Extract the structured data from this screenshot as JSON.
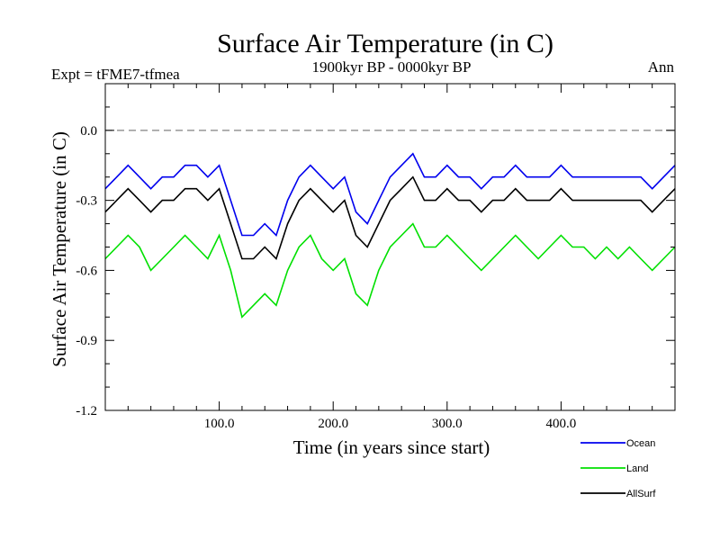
{
  "chart_data": {
    "type": "line",
    "title": "Surface Air Temperature (in C)",
    "subtitle_left": "Expt = tFME7-tfmea",
    "subtitle_center": "1900kyr BP - 0000kyr BP",
    "subtitle_right": "Ann",
    "xlabel": "Time (in years since start)",
    "ylabel": "Surface Air Temperature (in C)",
    "xlim": [
      0,
      500
    ],
    "ylim": [
      -1.2,
      0.2
    ],
    "x_ticks": [
      100,
      200,
      300,
      400
    ],
    "x_tick_labels": [
      "100.0",
      "200.0",
      "300.0",
      "400.0"
    ],
    "y_ticks": [
      0.0,
      -0.3,
      -0.6,
      -0.9,
      -1.2
    ],
    "y_tick_labels": [
      "0.0",
      "-0.3",
      "-0.6",
      "-0.9",
      "-1.2"
    ],
    "reference_line": 0.0,
    "series": [
      {
        "name": "Land",
        "color": "#00e000",
        "x": [
          0,
          10,
          20,
          30,
          40,
          50,
          60,
          70,
          80,
          90,
          100,
          110,
          120,
          130,
          140,
          150,
          160,
          170,
          180,
          190,
          200,
          210,
          220,
          230,
          240,
          250,
          260,
          270,
          280,
          290,
          300,
          310,
          320,
          330,
          340,
          350,
          360,
          370,
          380,
          390,
          400,
          410,
          420,
          430,
          440,
          450,
          460,
          470,
          480,
          490,
          500
        ],
        "values": [
          -0.55,
          -0.5,
          -0.45,
          -0.5,
          -0.6,
          -0.55,
          -0.5,
          -0.45,
          -0.5,
          -0.55,
          -0.45,
          -0.6,
          -0.8,
          -0.75,
          -0.7,
          -0.75,
          -0.6,
          -0.5,
          -0.45,
          -0.55,
          -0.6,
          -0.55,
          -0.7,
          -0.75,
          -0.6,
          -0.5,
          -0.45,
          -0.4,
          -0.5,
          -0.5,
          -0.45,
          -0.5,
          -0.55,
          -0.6,
          -0.55,
          -0.5,
          -0.45,
          -0.5,
          -0.55,
          -0.5,
          -0.45,
          -0.5,
          -0.5,
          -0.55,
          -0.5,
          -0.55,
          -0.5,
          -0.55,
          -0.6,
          -0.55,
          -0.5
        ]
      },
      {
        "name": "Ocean",
        "color": "#0000ee",
        "x": [
          0,
          10,
          20,
          30,
          40,
          50,
          60,
          70,
          80,
          90,
          100,
          110,
          120,
          130,
          140,
          150,
          160,
          170,
          180,
          190,
          200,
          210,
          220,
          230,
          240,
          250,
          260,
          270,
          280,
          290,
          300,
          310,
          320,
          330,
          340,
          350,
          360,
          370,
          380,
          390,
          400,
          410,
          420,
          430,
          440,
          450,
          460,
          470,
          480,
          490,
          500
        ],
        "values": [
          -0.25,
          -0.2,
          -0.15,
          -0.2,
          -0.25,
          -0.2,
          -0.2,
          -0.15,
          -0.15,
          -0.2,
          -0.15,
          -0.3,
          -0.45,
          -0.45,
          -0.4,
          -0.45,
          -0.3,
          -0.2,
          -0.15,
          -0.2,
          -0.25,
          -0.2,
          -0.35,
          -0.4,
          -0.3,
          -0.2,
          -0.15,
          -0.1,
          -0.2,
          -0.2,
          -0.15,
          -0.2,
          -0.2,
          -0.25,
          -0.2,
          -0.2,
          -0.15,
          -0.2,
          -0.2,
          -0.2,
          -0.15,
          -0.2,
          -0.2,
          -0.2,
          -0.2,
          -0.2,
          -0.2,
          -0.2,
          -0.25,
          -0.2,
          -0.15
        ]
      },
      {
        "name": "AllSurf",
        "color": "#000000",
        "x": [
          0,
          10,
          20,
          30,
          40,
          50,
          60,
          70,
          80,
          90,
          100,
          110,
          120,
          130,
          140,
          150,
          160,
          170,
          180,
          190,
          200,
          210,
          220,
          230,
          240,
          250,
          260,
          270,
          280,
          290,
          300,
          310,
          320,
          330,
          340,
          350,
          360,
          370,
          380,
          390,
          400,
          410,
          420,
          430,
          440,
          450,
          460,
          470,
          480,
          490,
          500
        ],
        "values": [
          -0.35,
          -0.3,
          -0.25,
          -0.3,
          -0.35,
          -0.3,
          -0.3,
          -0.25,
          -0.25,
          -0.3,
          -0.25,
          -0.4,
          -0.55,
          -0.55,
          -0.5,
          -0.55,
          -0.4,
          -0.3,
          -0.25,
          -0.3,
          -0.35,
          -0.3,
          -0.45,
          -0.5,
          -0.4,
          -0.3,
          -0.25,
          -0.2,
          -0.3,
          -0.3,
          -0.25,
          -0.3,
          -0.3,
          -0.35,
          -0.3,
          -0.3,
          -0.25,
          -0.3,
          -0.3,
          -0.3,
          -0.25,
          -0.3,
          -0.3,
          -0.3,
          -0.3,
          -0.3,
          -0.3,
          -0.3,
          -0.35,
          -0.3,
          -0.25
        ]
      }
    ],
    "legend": [
      {
        "name": "Ocean",
        "color": "#0000ee"
      },
      {
        "name": "Land",
        "color": "#00e000"
      },
      {
        "name": "AllSurf",
        "color": "#000000"
      }
    ],
    "legend_position": "bottom-right"
  }
}
